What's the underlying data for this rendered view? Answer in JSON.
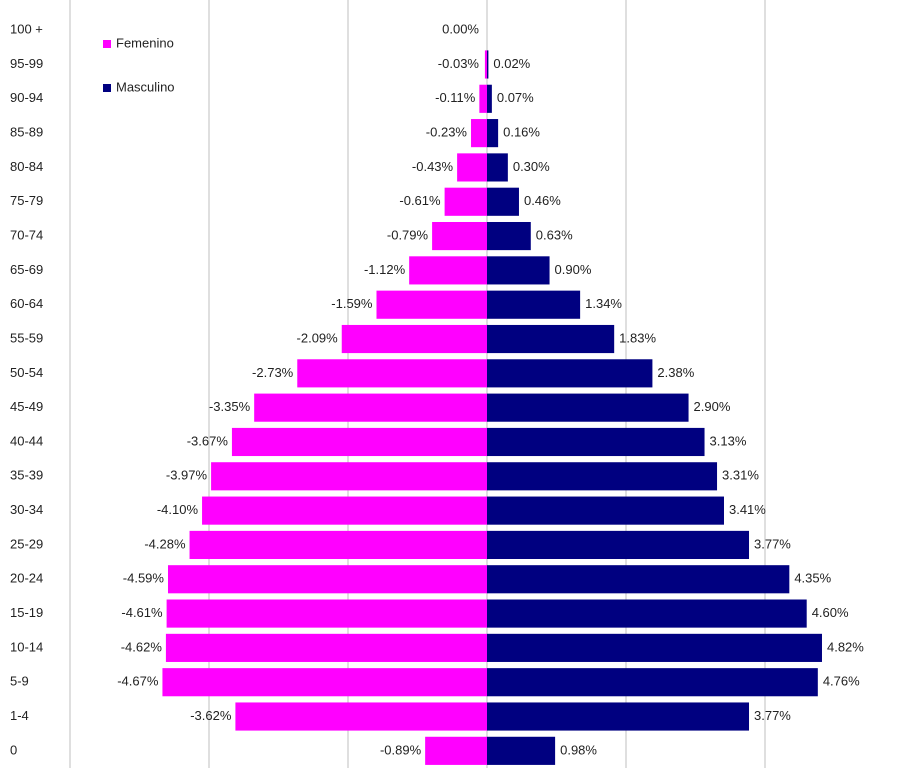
{
  "chart_data": {
    "type": "bar",
    "orientation": "horizontal",
    "categories": [
      "100 +",
      "95-99",
      "90-94",
      "85-89",
      "80-84",
      "75-79",
      "70-74",
      "65-69",
      "60-64",
      "55-59",
      "50-54",
      "45-49",
      "40-44",
      "35-39",
      "30-34",
      "25-29",
      "20-24",
      "15-19",
      "10-14",
      "5-9",
      "1-4",
      "0"
    ],
    "series": [
      {
        "name": "Femenino",
        "color": "#ff00ff",
        "values": [
          0,
          -0.03,
          -0.11,
          -0.23,
          -0.43,
          -0.61,
          -0.79,
          -1.12,
          -1.59,
          -2.09,
          -2.73,
          -3.35,
          -3.67,
          -3.97,
          -4.1,
          -4.28,
          -4.59,
          -4.61,
          -4.62,
          -4.67,
          -3.62,
          -0.89
        ],
        "value_labels": [
          "0.00%",
          "-0.03%",
          "-0.11%",
          "-0.23%",
          "-0.43%",
          "-0.61%",
          "-0.79%",
          "-1.12%",
          "-1.59%",
          "-2.09%",
          "-2.73%",
          "-3.35%",
          "-3.67%",
          "-3.97%",
          "-4.10%",
          "-4.28%",
          "-4.59%",
          "-4.61%",
          "-4.62%",
          "-4.67%",
          "-3.62%",
          "-0.89%"
        ]
      },
      {
        "name": "Masculino",
        "color": "#000080",
        "values": [
          null,
          0.02,
          0.07,
          0.16,
          0.3,
          0.46,
          0.63,
          0.9,
          1.34,
          1.83,
          2.38,
          2.9,
          3.13,
          3.31,
          3.41,
          3.77,
          4.35,
          4.6,
          4.82,
          4.76,
          3.77,
          0.98
        ],
        "value_labels": [
          null,
          "0.02%",
          "0.07%",
          "0.16%",
          "0.30%",
          "0.46%",
          "0.63%",
          "0.90%",
          "1.34%",
          "1.83%",
          "2.38%",
          "2.90%",
          "3.13%",
          "3.31%",
          "3.41%",
          "3.77%",
          "4.35%",
          "4.60%",
          "4.82%",
          "4.76%",
          "3.77%",
          "0.98%"
        ]
      }
    ],
    "xlim": [
      -6,
      6
    ],
    "xticks": [
      -6,
      -4,
      -2,
      0,
      2,
      4
    ],
    "grid": true,
    "legend": "top-left"
  }
}
